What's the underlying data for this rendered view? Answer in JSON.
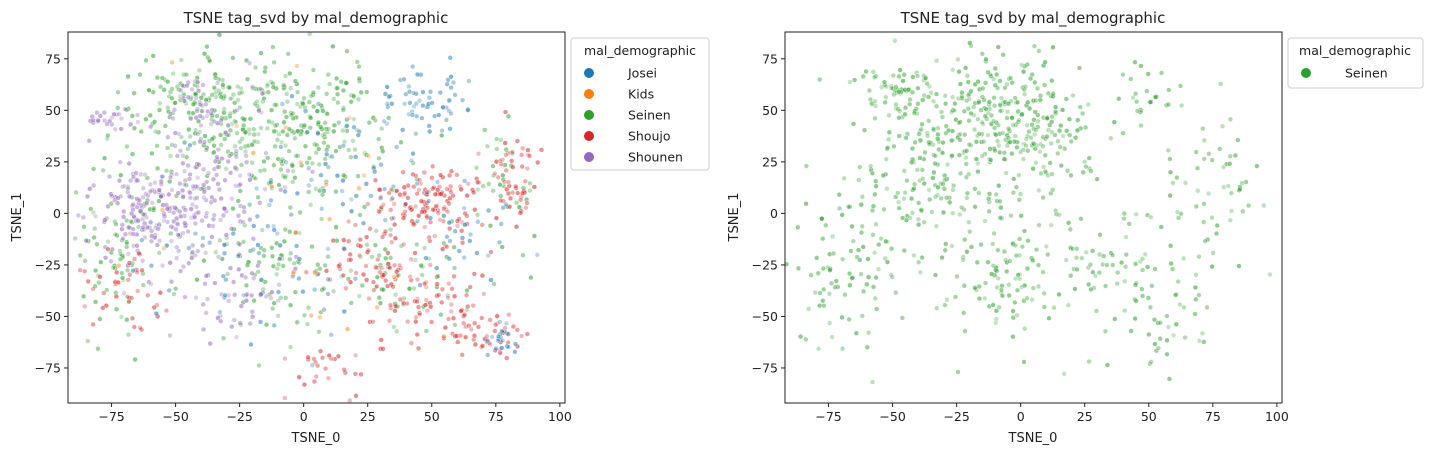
{
  "chart_data": [
    {
      "type": "scatter",
      "title": "TSNE tag_svd by mal_demographic",
      "xlabel": "TSNE_0",
      "ylabel": "TSNE_1",
      "xlim": [
        -92,
        102
      ],
      "ylim": [
        -92,
        88
      ],
      "xticks": [
        -75,
        -50,
        -25,
        0,
        25,
        50,
        75,
        100
      ],
      "yticks": [
        -75,
        -50,
        -25,
        0,
        25,
        50,
        75
      ],
      "legend": {
        "title": "mal_demographic",
        "placement": "outside-right-top",
        "entries": [
          {
            "name": "Josei",
            "color": "#1f77b4"
          },
          {
            "name": "Kids",
            "color": "#ff7f0e"
          },
          {
            "name": "Seinen",
            "color": "#2ca02c"
          },
          {
            "name": "Shoujo",
            "color": "#d62728"
          },
          {
            "name": "Shounen",
            "color": "#9467bd"
          }
        ]
      },
      "clusters": [
        {
          "series": "Seinen",
          "x": -25,
          "y": 45,
          "sx": 20,
          "sy": 18,
          "n": 240
        },
        {
          "series": "Seinen",
          "x": 5,
          "y": 40,
          "sx": 14,
          "sy": 18,
          "n": 160
        },
        {
          "series": "Seinen",
          "x": -45,
          "y": 60,
          "sx": 10,
          "sy": 8,
          "n": 60
        },
        {
          "series": "Seinen",
          "x": -70,
          "y": -20,
          "sx": 10,
          "sy": 20,
          "n": 90
        },
        {
          "series": "Seinen",
          "x": -10,
          "y": -30,
          "sx": 15,
          "sy": 15,
          "n": 90
        },
        {
          "series": "Seinen",
          "x": 40,
          "y": -30,
          "sx": 15,
          "sy": 15,
          "n": 60
        },
        {
          "series": "Seinen",
          "x": 80,
          "y": 10,
          "sx": 8,
          "sy": 20,
          "n": 40
        },
        {
          "series": "Shounen",
          "x": -55,
          "y": 0,
          "sx": 14,
          "sy": 12,
          "n": 200
        },
        {
          "series": "Shounen",
          "x": -35,
          "y": 15,
          "sx": 12,
          "sy": 12,
          "n": 90
        },
        {
          "series": "Shounen",
          "x": -75,
          "y": 45,
          "sx": 5,
          "sy": 4,
          "n": 25
        },
        {
          "series": "Shounen",
          "x": -40,
          "y": 50,
          "sx": 10,
          "sy": 10,
          "n": 50
        },
        {
          "series": "Shounen",
          "x": -30,
          "y": -35,
          "sx": 15,
          "sy": 12,
          "n": 60
        },
        {
          "series": "Shoujo",
          "x": 48,
          "y": 5,
          "sx": 12,
          "sy": 10,
          "n": 130
        },
        {
          "series": "Shoujo",
          "x": 30,
          "y": -25,
          "sx": 10,
          "sy": 12,
          "n": 80
        },
        {
          "series": "Shoujo",
          "x": 55,
          "y": -45,
          "sx": 10,
          "sy": 10,
          "n": 70
        },
        {
          "series": "Shoujo",
          "x": 82,
          "y": 15,
          "sx": 6,
          "sy": 12,
          "n": 50
        },
        {
          "series": "Shoujo",
          "x": 75,
          "y": -60,
          "sx": 5,
          "sy": 5,
          "n": 30
        },
        {
          "series": "Shoujo",
          "x": 8,
          "y": -75,
          "sx": 8,
          "sy": 8,
          "n": 30
        },
        {
          "series": "Shoujo",
          "x": -70,
          "y": -35,
          "sx": 10,
          "sy": 10,
          "n": 40
        },
        {
          "series": "Josei",
          "x": 45,
          "y": 55,
          "sx": 8,
          "sy": 8,
          "n": 60
        },
        {
          "series": "Josei",
          "x": 10,
          "y": 20,
          "sx": 20,
          "sy": 20,
          "n": 60
        },
        {
          "series": "Josei",
          "x": -20,
          "y": -20,
          "sx": 20,
          "sy": 20,
          "n": 50
        },
        {
          "series": "Josei",
          "x": 78,
          "y": -60,
          "sx": 4,
          "sy": 5,
          "n": 20
        },
        {
          "series": "Josei",
          "x": 60,
          "y": -10,
          "sx": 12,
          "sy": 12,
          "n": 30
        },
        {
          "series": "Kids",
          "x": 0,
          "y": 0,
          "sx": 40,
          "sy": 35,
          "n": 25
        }
      ]
    },
    {
      "type": "scatter",
      "title": "TSNE tag_svd by mal_demographic",
      "xlabel": "TSNE_0",
      "ylabel": "TSNE_1",
      "xlim": [
        -92,
        102
      ],
      "ylim": [
        -92,
        88
      ],
      "xticks": [
        -75,
        -50,
        -25,
        0,
        25,
        50,
        75,
        100
      ],
      "yticks": [
        -75,
        -50,
        -25,
        0,
        25,
        50,
        75
      ],
      "legend": {
        "title": "mal_demographic",
        "placement": "outside-right-top",
        "entries": [
          {
            "name": "Seinen",
            "color": "#2ca02c"
          }
        ]
      },
      "clusters": [
        {
          "series": "Seinen",
          "x": -25,
          "y": 45,
          "sx": 18,
          "sy": 16,
          "n": 230
        },
        {
          "series": "Seinen",
          "x": 5,
          "y": 40,
          "sx": 13,
          "sy": 18,
          "n": 150
        },
        {
          "series": "Seinen",
          "x": -50,
          "y": 60,
          "sx": 9,
          "sy": 7,
          "n": 50
        },
        {
          "series": "Seinen",
          "x": -70,
          "y": -25,
          "sx": 10,
          "sy": 20,
          "n": 80
        },
        {
          "series": "Seinen",
          "x": -10,
          "y": -30,
          "sx": 15,
          "sy": 15,
          "n": 90
        },
        {
          "series": "Seinen",
          "x": 35,
          "y": -30,
          "sx": 15,
          "sy": 15,
          "n": 70
        },
        {
          "series": "Seinen",
          "x": 78,
          "y": 10,
          "sx": 10,
          "sy": 20,
          "n": 50
        },
        {
          "series": "Seinen",
          "x": -40,
          "y": 10,
          "sx": 15,
          "sy": 12,
          "n": 70
        },
        {
          "series": "Seinen",
          "x": 45,
          "y": 55,
          "sx": 8,
          "sy": 8,
          "n": 25
        },
        {
          "series": "Seinen",
          "x": 60,
          "y": -55,
          "sx": 10,
          "sy": 10,
          "n": 30
        },
        {
          "series": "Seinen",
          "x": 0,
          "y": 0,
          "sx": 35,
          "sy": 30,
          "n": 80
        }
      ]
    }
  ]
}
